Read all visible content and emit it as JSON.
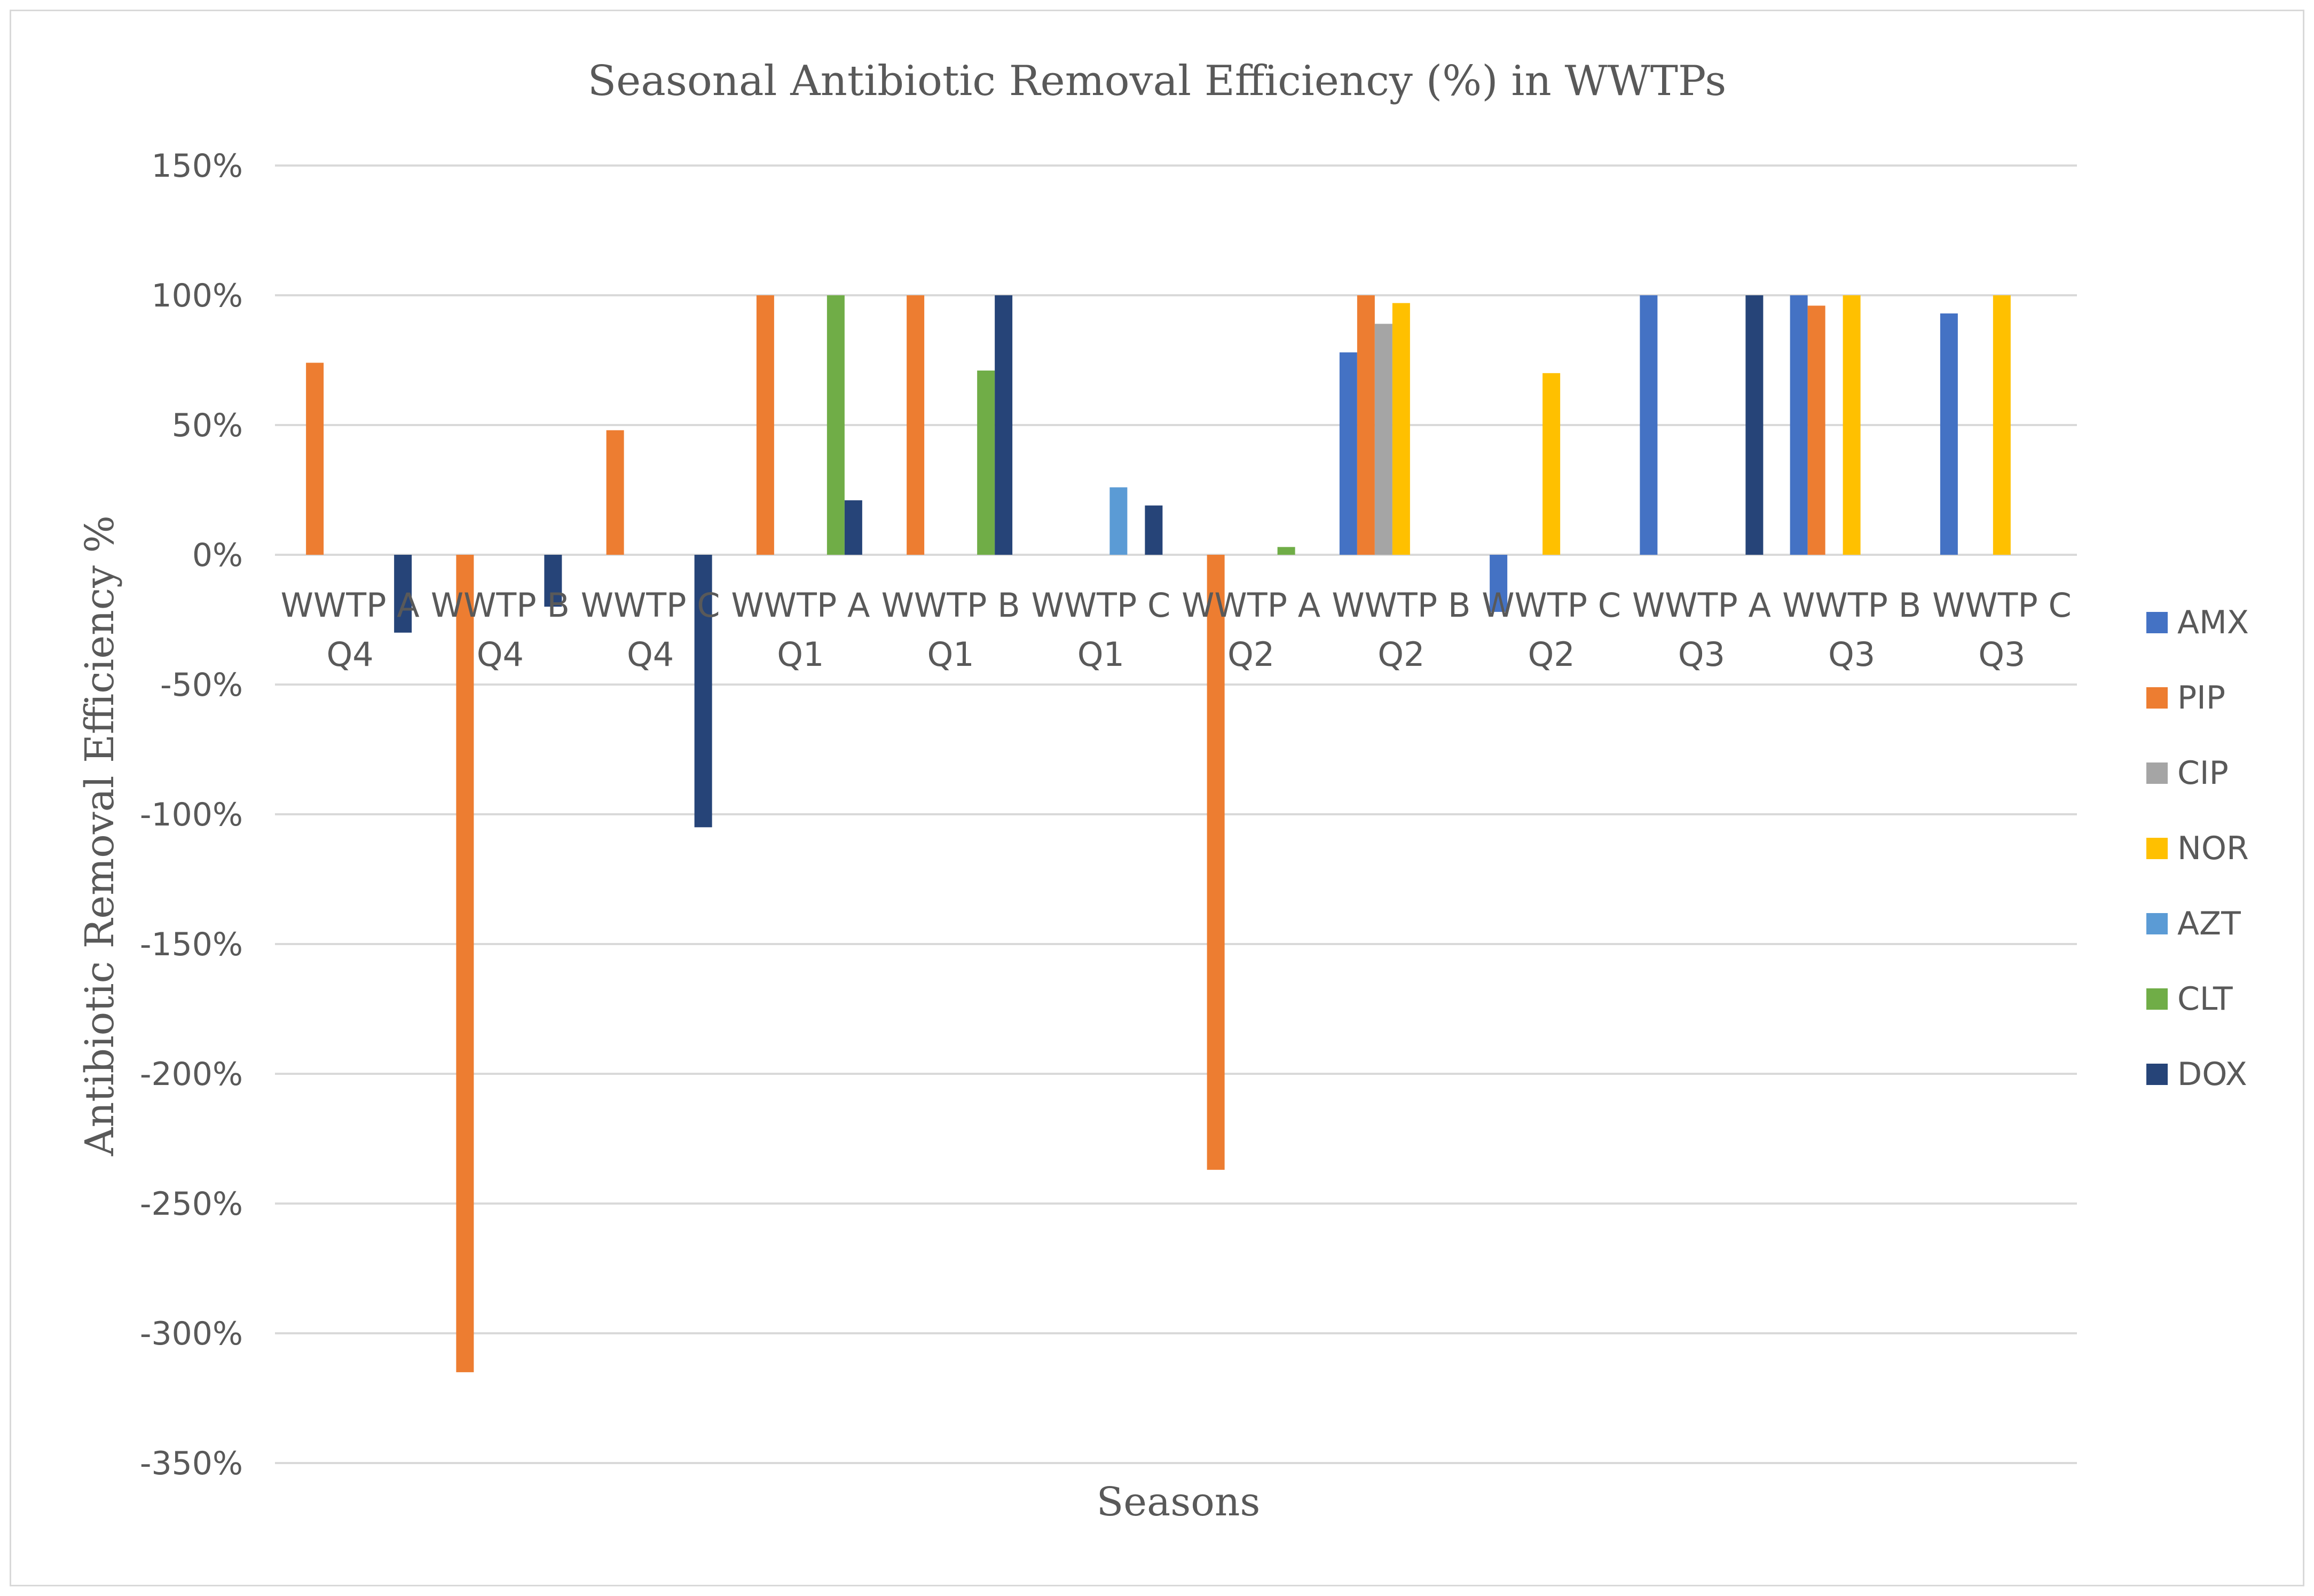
{
  "chart_data": {
    "type": "bar",
    "title": "Seasonal Antibiotic Removal Efficiency (%) in WWTPs",
    "xlabel": "Seasons",
    "ylabel": "Antibiotic Removal Efficiency %",
    "ylim": [
      -350,
      150
    ],
    "y_ticks": [
      150,
      100,
      50,
      0,
      -50,
      -100,
      -150,
      -200,
      -250,
      -300,
      -350
    ],
    "y_tick_labels": [
      "150%",
      "100%",
      "50%",
      "0%",
      "-50%",
      "-100%",
      "-150%",
      "-200%",
      "-250%",
      "-300%",
      "-350%"
    ],
    "grid": true,
    "legend_position": "right",
    "categories": [
      [
        "WWTP A",
        "Q4"
      ],
      [
        "WWTP B",
        "Q4"
      ],
      [
        "WWTP C",
        "Q4"
      ],
      [
        "WWTP A",
        "Q1"
      ],
      [
        "WWTP B",
        "Q1"
      ],
      [
        "WWTP C",
        "Q1"
      ],
      [
        "WWTP A",
        "Q2"
      ],
      [
        "WWTP B",
        "Q2"
      ],
      [
        "WWTP C",
        "Q2"
      ],
      [
        "WWTP A",
        "Q3"
      ],
      [
        "WWTP B",
        "Q3"
      ],
      [
        "WWTP C",
        "Q3"
      ]
    ],
    "series": [
      {
        "name": "AMX",
        "color": "#4472c4",
        "values": [
          0,
          0,
          0,
          0,
          0,
          0,
          0,
          78,
          -22,
          100,
          100,
          93
        ]
      },
      {
        "name": "PIP",
        "color": "#ed7d31",
        "values": [
          74,
          -315,
          48,
          100,
          100,
          0,
          -237,
          100,
          0,
          0,
          96,
          0
        ]
      },
      {
        "name": "CIP",
        "color": "#a5a5a5",
        "values": [
          0,
          0,
          0,
          0,
          0,
          0,
          0,
          89,
          0,
          0,
          0,
          0
        ]
      },
      {
        "name": "NOR",
        "color": "#ffc000",
        "values": [
          0,
          0,
          0,
          0,
          0,
          0,
          0,
          97,
          70,
          0,
          100,
          100
        ]
      },
      {
        "name": "AZT",
        "color": "#5b9bd5",
        "values": [
          0,
          0,
          0,
          0,
          0,
          26,
          0,
          0,
          0,
          0,
          0,
          0
        ]
      },
      {
        "name": "CLT",
        "color": "#70ad47",
        "values": [
          0,
          0,
          0,
          100,
          71,
          0,
          3,
          0,
          0,
          0,
          0,
          0
        ]
      },
      {
        "name": "DOX",
        "color": "#264478",
        "values": [
          -30,
          -20,
          -105,
          21,
          100,
          19,
          0,
          0,
          0,
          100,
          0,
          0
        ]
      }
    ]
  }
}
